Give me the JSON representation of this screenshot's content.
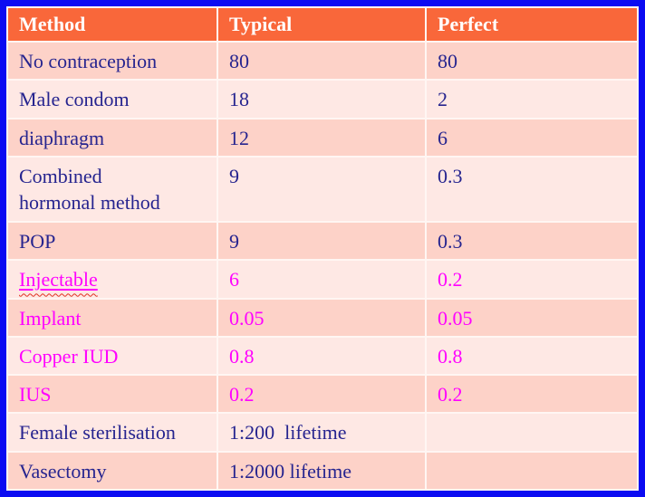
{
  "table": {
    "headers": [
      "Method",
      "Typical",
      "Perfect"
    ],
    "rows": [
      {
        "method": "No contraception",
        "typical": "80",
        "perfect": "80"
      },
      {
        "method": "Male condom",
        "typical": "18",
        "perfect": "2"
      },
      {
        "method": "diaphragm",
        "typical": "12",
        "perfect": "6"
      },
      {
        "method": "Combined\nhormonal method",
        "typical": "9",
        "perfect": "0.3"
      },
      {
        "method": "POP",
        "typical": "9",
        "perfect": "0.3"
      },
      {
        "method": "Injectable",
        "typical": "6",
        "perfect": "0.2"
      },
      {
        "method": "Implant",
        "typical": "0.05",
        "perfect": "0.05"
      },
      {
        "method": "Copper IUD",
        "typical": "0.8",
        "perfect": "0.8"
      },
      {
        "method": "IUS",
        "typical": "0.2",
        "perfect": "0.2"
      },
      {
        "method": "Female sterilisation",
        "typical": "1:200  lifetime",
        "perfect": ""
      },
      {
        "method": "Vasectomy",
        "typical": "1:2000 lifetime",
        "perfect": ""
      }
    ],
    "colors": {
      "frame_blue": "#0B0BF2",
      "header_orange": "#F9673A",
      "header_text": "#FFFFFF",
      "row_dark_pink": "#FDD2C8",
      "row_light_pink": "#FEE8E4",
      "separator_light": "#FFF6F3",
      "text_navy": "#26248F",
      "text_magenta": "#FF00FF",
      "spellcheck_red": "#E03020"
    }
  }
}
